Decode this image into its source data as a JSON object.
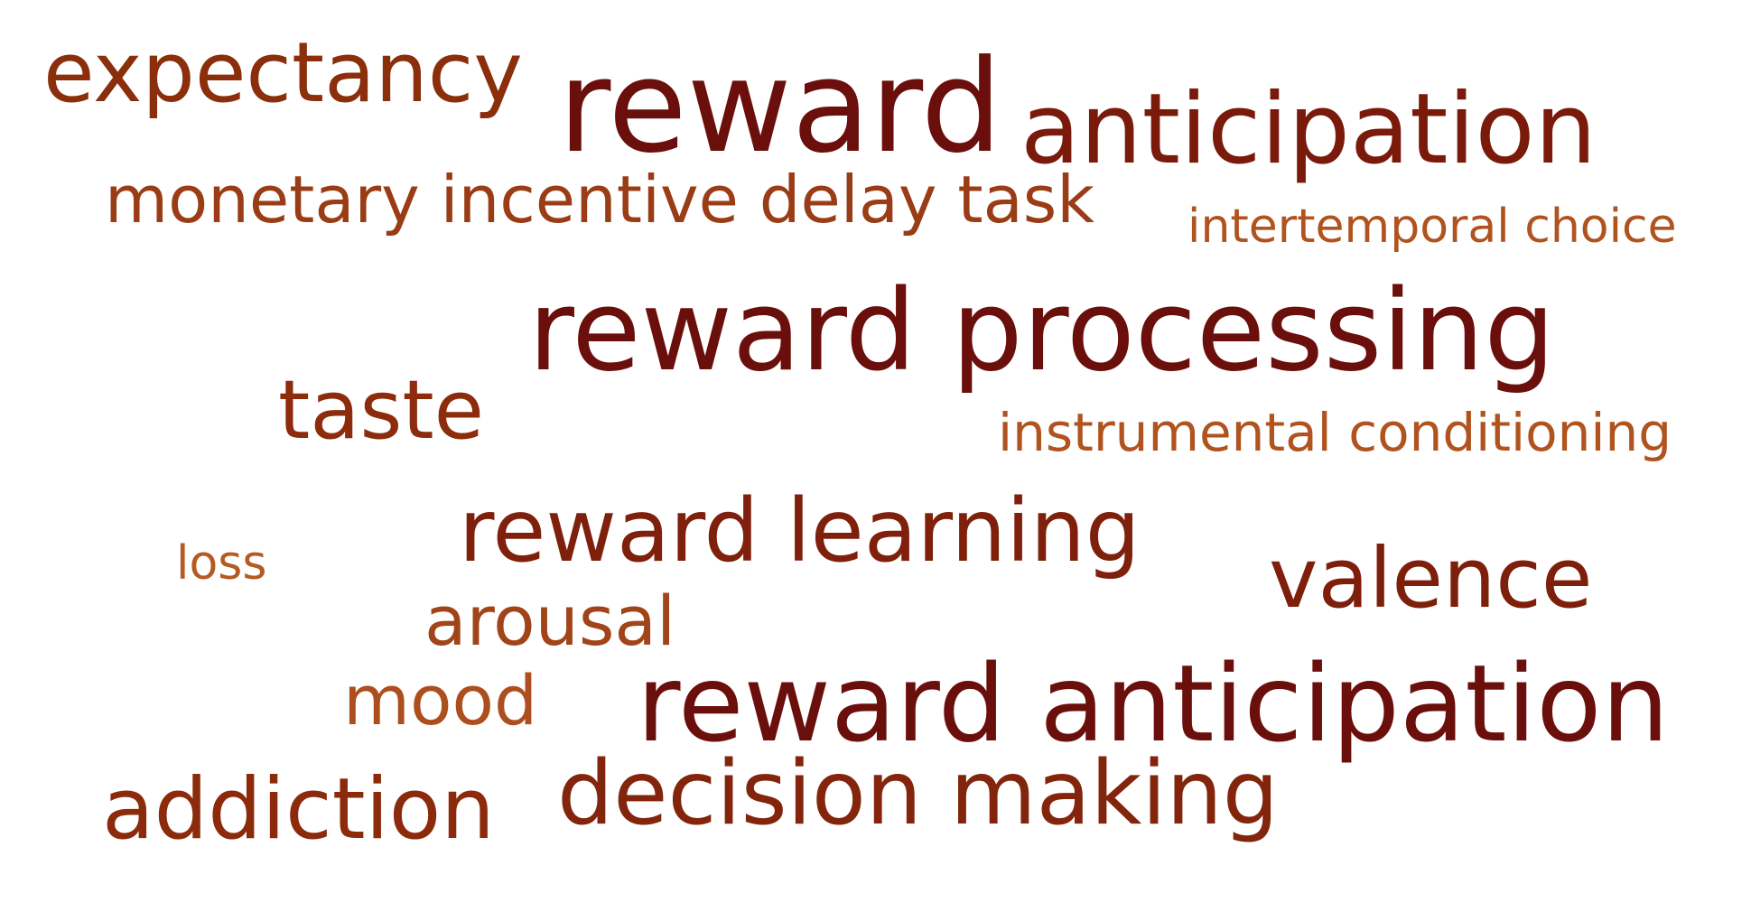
{
  "words": [
    {
      "key": "expectancy",
      "text": "expectancy",
      "color": "#8a2e0c"
    },
    {
      "key": "reward",
      "text": "reward",
      "color": "#6b0f0c"
    },
    {
      "key": "anticipation_1",
      "text": "anticipation",
      "color": "#7a1a0b"
    },
    {
      "key": "monetary_incentive_delay_task",
      "text": "monetary incentive delay task",
      "color": "#9a3d16"
    },
    {
      "key": "intertemporal_choice",
      "text": "intertemporal choice",
      "color": "#b0531f"
    },
    {
      "key": "reward_processing",
      "text": "reward processing",
      "color": "#6a0f0c"
    },
    {
      "key": "taste",
      "text": "taste",
      "color": "#8c2c0c"
    },
    {
      "key": "instrumental_conditioning",
      "text": "instrumental conditioning",
      "color": "#b0531f"
    },
    {
      "key": "reward_learning",
      "text": "reward learning",
      "color": "#7f200c"
    },
    {
      "key": "loss",
      "text": "loss",
      "color": "#b45a22"
    },
    {
      "key": "valence",
      "text": "valence",
      "color": "#7e1f0c"
    },
    {
      "key": "arousal",
      "text": "arousal",
      "color": "#a14419"
    },
    {
      "key": "mood",
      "text": "mood",
      "color": "#ac4e1d"
    },
    {
      "key": "reward_anticipation",
      "text": "reward anticipation",
      "color": "#6a0f0c"
    },
    {
      "key": "addiction",
      "text": "addiction",
      "color": "#8b2b0c"
    },
    {
      "key": "decision_making",
      "text": "decision making",
      "color": "#83250c"
    }
  ]
}
